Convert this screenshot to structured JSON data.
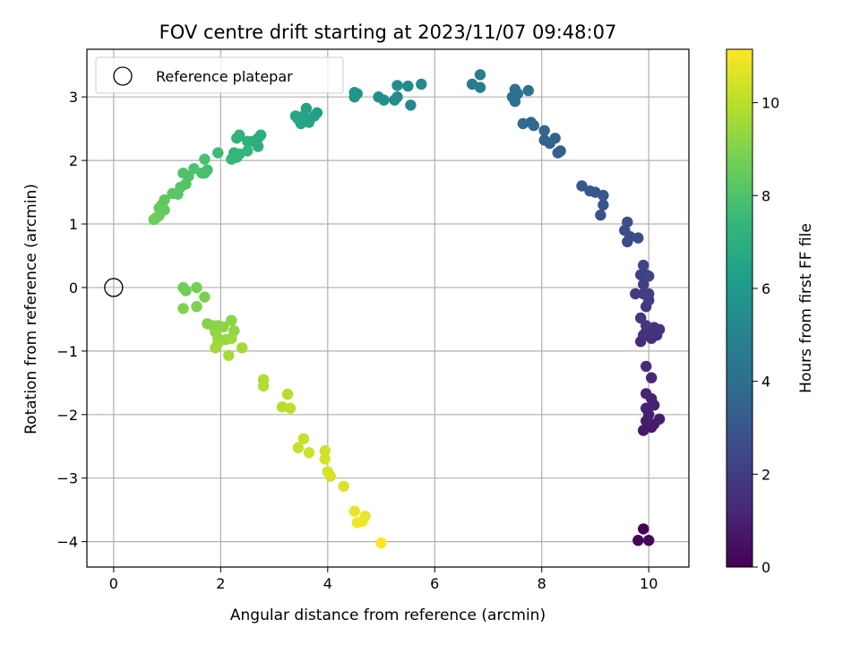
{
  "chart_data": {
    "type": "scatter",
    "title": "FOV centre drift starting at 2023/11/07 09:48:07",
    "xlabel": "Angular distance from reference (arcmin)",
    "ylabel": "Rotation from reference (arcmin)",
    "colorbar_label": "Hours from first FF file",
    "xlim": [
      -0.5,
      10.75
    ],
    "ylim": [
      -4.4,
      3.75
    ],
    "clim": [
      0,
      11.15
    ],
    "colormap": "viridis",
    "grid": true,
    "legend_position": "top-left",
    "x_ticks": [
      0,
      2,
      4,
      6,
      8,
      10
    ],
    "y_ticks": [
      -4,
      -3,
      -2,
      -1,
      0,
      1,
      2,
      3
    ],
    "colorbar_ticks": [
      0,
      2,
      4,
      6,
      8,
      10
    ],
    "reference": {
      "name": "Reference platepar",
      "x": 0,
      "y": 0
    },
    "points": [
      [
        9.9,
        -3.8,
        0.0
      ],
      [
        9.8,
        -3.98,
        0.1
      ],
      [
        10.0,
        -3.98,
        0.2
      ],
      [
        9.9,
        -2.25,
        0.7
      ],
      [
        10.05,
        -2.2,
        0.75
      ],
      [
        10.1,
        -2.15,
        0.8
      ],
      [
        9.95,
        -2.1,
        0.85
      ],
      [
        10.2,
        -2.07,
        0.9
      ],
      [
        10.0,
        -2.0,
        0.95
      ],
      [
        9.95,
        -1.9,
        1.0
      ],
      [
        10.1,
        -1.85,
        1.05
      ],
      [
        10.05,
        -1.75,
        1.1
      ],
      [
        9.95,
        -1.67,
        1.15
      ],
      [
        10.05,
        -1.42,
        1.2
      ],
      [
        9.95,
        -1.24,
        1.3
      ],
      [
        9.85,
        -0.85,
        1.4
      ],
      [
        10.05,
        -0.8,
        1.45
      ],
      [
        9.9,
        -0.75,
        1.5
      ],
      [
        10.15,
        -0.75,
        1.55
      ],
      [
        9.95,
        -0.7,
        1.6
      ],
      [
        10.2,
        -0.66,
        1.65
      ],
      [
        10.1,
        -0.63,
        1.7
      ],
      [
        9.95,
        -0.6,
        1.75
      ],
      [
        9.85,
        -0.48,
        1.8
      ],
      [
        9.95,
        -0.3,
        1.85
      ],
      [
        10.0,
        -0.2,
        1.9
      ],
      [
        9.75,
        -0.1,
        1.95
      ],
      [
        9.9,
        -0.1,
        2.0
      ],
      [
        10.0,
        -0.1,
        2.05
      ],
      [
        9.9,
        0.05,
        2.1
      ],
      [
        9.85,
        0.2,
        2.15
      ],
      [
        9.95,
        0.2,
        2.2
      ],
      [
        10.0,
        0.18,
        2.25
      ],
      [
        9.9,
        0.35,
        2.3
      ],
      [
        9.6,
        0.72,
        2.5
      ],
      [
        9.65,
        0.8,
        2.55
      ],
      [
        9.8,
        0.78,
        2.6
      ],
      [
        9.55,
        0.9,
        2.65
      ],
      [
        9.6,
        1.03,
        2.7
      ],
      [
        9.1,
        1.14,
        2.8
      ],
      [
        9.15,
        1.3,
        2.9
      ],
      [
        9.15,
        1.45,
        2.95
      ],
      [
        9.0,
        1.5,
        3.0
      ],
      [
        8.9,
        1.52,
        3.05
      ],
      [
        8.75,
        1.6,
        3.1
      ],
      [
        8.35,
        2.15,
        3.4
      ],
      [
        8.3,
        2.12,
        3.45
      ],
      [
        8.15,
        2.27,
        3.5
      ],
      [
        8.05,
        2.32,
        3.55
      ],
      [
        8.25,
        2.35,
        3.6
      ],
      [
        8.05,
        2.47,
        3.65
      ],
      [
        7.85,
        2.55,
        3.7
      ],
      [
        7.8,
        2.6,
        3.75
      ],
      [
        7.65,
        2.58,
        3.8
      ],
      [
        7.5,
        2.93,
        4.0
      ],
      [
        7.45,
        3.0,
        4.05
      ],
      [
        7.5,
        3.12,
        4.1
      ],
      [
        7.55,
        3.05,
        4.15
      ],
      [
        7.75,
        3.1,
        4.2
      ],
      [
        6.85,
        3.15,
        4.6
      ],
      [
        6.7,
        3.2,
        4.65
      ],
      [
        6.85,
        3.35,
        4.7
      ],
      [
        5.55,
        2.87,
        5.2
      ],
      [
        5.5,
        3.17,
        5.3
      ],
      [
        5.75,
        3.2,
        5.35
      ],
      [
        5.3,
        3.0,
        5.4
      ],
      [
        5.3,
        3.18,
        5.45
      ],
      [
        5.25,
        2.95,
        5.5
      ],
      [
        5.05,
        2.95,
        5.55
      ],
      [
        4.95,
        3.0,
        5.6
      ],
      [
        4.5,
        3.0,
        5.8
      ],
      [
        4.55,
        3.05,
        5.85
      ],
      [
        4.5,
        3.07,
        5.9
      ],
      [
        3.8,
        2.75,
        6.3
      ],
      [
        3.75,
        2.7,
        6.35
      ],
      [
        3.6,
        2.82,
        6.4
      ],
      [
        3.55,
        2.7,
        6.45
      ],
      [
        3.65,
        2.6,
        6.5
      ],
      [
        3.5,
        2.58,
        6.55
      ],
      [
        3.4,
        2.7,
        6.6
      ],
      [
        3.45,
        2.65,
        6.65
      ],
      [
        2.75,
        2.4,
        6.9
      ],
      [
        2.7,
        2.35,
        6.95
      ],
      [
        2.6,
        2.3,
        7.0
      ],
      [
        2.7,
        2.22,
        7.05
      ],
      [
        2.5,
        2.3,
        7.1
      ],
      [
        2.35,
        2.4,
        7.15
      ],
      [
        2.3,
        2.35,
        7.2
      ],
      [
        2.25,
        2.12,
        7.25
      ],
      [
        2.35,
        2.1,
        7.3
      ],
      [
        2.5,
        2.15,
        7.35
      ],
      [
        2.3,
        2.05,
        7.4
      ],
      [
        2.2,
        2.02,
        7.45
      ],
      [
        1.95,
        2.12,
        7.6
      ],
      [
        1.7,
        1.8,
        7.75
      ],
      [
        1.75,
        1.85,
        7.8
      ],
      [
        1.65,
        1.8,
        7.85
      ],
      [
        1.7,
        2.02,
        7.9
      ],
      [
        1.5,
        1.87,
        7.95
      ],
      [
        1.4,
        1.75,
        8.0
      ],
      [
        1.3,
        1.8,
        8.05
      ],
      [
        1.35,
        1.63,
        8.1
      ],
      [
        1.25,
        1.58,
        8.15
      ],
      [
        1.2,
        1.47,
        8.2
      ],
      [
        1.1,
        1.48,
        8.25
      ],
      [
        0.95,
        1.38,
        8.3
      ],
      [
        0.9,
        1.3,
        8.35
      ],
      [
        0.85,
        1.25,
        8.4
      ],
      [
        0.95,
        1.22,
        8.45
      ],
      [
        0.8,
        1.1,
        8.5
      ],
      [
        0.85,
        1.13,
        8.55
      ],
      [
        0.75,
        1.07,
        8.6
      ],
      [
        1.3,
        0.0,
        8.7
      ],
      [
        1.35,
        -0.05,
        8.75
      ],
      [
        1.55,
        0.0,
        8.8
      ],
      [
        1.7,
        -0.15,
        8.85
      ],
      [
        1.55,
        -0.3,
        8.9
      ],
      [
        1.3,
        -0.33,
        8.95
      ],
      [
        1.75,
        -0.57,
        9.0
      ],
      [
        1.85,
        -0.6,
        9.05
      ],
      [
        1.95,
        -0.6,
        9.1
      ],
      [
        2.2,
        -0.52,
        9.15
      ],
      [
        2.05,
        -0.62,
        9.2
      ],
      [
        1.9,
        -0.7,
        9.25
      ],
      [
        2.25,
        -0.68,
        9.3
      ],
      [
        1.95,
        -0.8,
        9.35
      ],
      [
        2.1,
        -0.82,
        9.4
      ],
      [
        2.2,
        -0.8,
        9.45
      ],
      [
        1.95,
        -0.88,
        9.5
      ],
      [
        1.9,
        -0.95,
        9.55
      ],
      [
        2.4,
        -0.95,
        9.6
      ],
      [
        2.15,
        -1.07,
        9.65
      ],
      [
        2.8,
        -1.45,
        9.8
      ],
      [
        2.8,
        -1.55,
        9.85
      ],
      [
        3.25,
        -1.68,
        9.9
      ],
      [
        3.15,
        -1.88,
        9.95
      ],
      [
        3.3,
        -1.9,
        10.0
      ],
      [
        3.55,
        -2.38,
        10.2
      ],
      [
        3.45,
        -2.52,
        10.25
      ],
      [
        3.65,
        -2.6,
        10.3
      ],
      [
        3.95,
        -2.57,
        10.35
      ],
      [
        3.95,
        -2.7,
        10.4
      ],
      [
        4.0,
        -2.9,
        10.45
      ],
      [
        4.05,
        -2.97,
        10.5
      ],
      [
        4.3,
        -3.13,
        10.55
      ],
      [
        4.5,
        -3.52,
        10.8
      ],
      [
        4.7,
        -3.6,
        10.85
      ],
      [
        4.65,
        -3.68,
        10.9
      ],
      [
        4.55,
        -3.7,
        10.95
      ],
      [
        5.0,
        -4.02,
        11.1
      ]
    ]
  }
}
